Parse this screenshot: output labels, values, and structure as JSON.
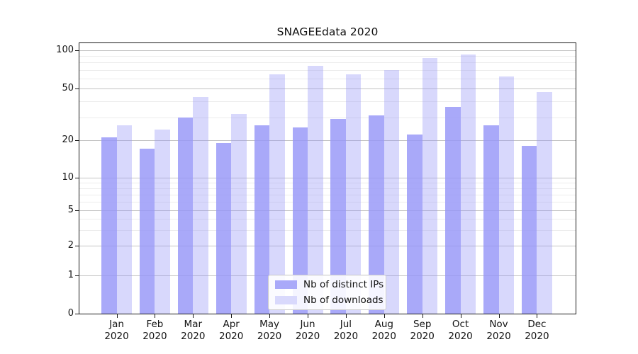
{
  "chart_data": {
    "type": "bar",
    "title": "SNAGEEdata 2020",
    "x_year": "2020",
    "categories": [
      "Jan",
      "Feb",
      "Mar",
      "Apr",
      "May",
      "Jun",
      "Jul",
      "Aug",
      "Sep",
      "Oct",
      "Nov",
      "Dec"
    ],
    "series": [
      {
        "name": "Nb of distinct IPs",
        "values": [
          21,
          17,
          30,
          19,
          26,
          25,
          29,
          31,
          22,
          36,
          26,
          18
        ],
        "color": "#9696f8",
        "opacity": 0.82,
        "legend_swatch_color": "#a9a9f9"
      },
      {
        "name": "Nb of downloads",
        "values": [
          26,
          24,
          43,
          32,
          65,
          75,
          65,
          70,
          87,
          92,
          62,
          47
        ],
        "color": "#9696f8",
        "opacity": 0.37,
        "legend_swatch_color": "#d9d9fc"
      }
    ],
    "y_scale": "quasi-log (log above 1, linear 0-1)",
    "y_ticks_major": [
      0,
      1,
      2,
      5,
      10,
      20,
      50,
      100
    ],
    "y_ticks_minor": [
      3,
      4,
      6,
      7,
      8,
      9,
      30,
      40,
      60,
      70,
      80,
      90
    ],
    "ylim": [
      0,
      115
    ],
    "grid": true,
    "legend_position": "lower-center"
  },
  "colors": {
    "grid_major": "#c3c3c3",
    "grid_minor": "#ececec",
    "spine": "#1a1a1a",
    "text": "#141414"
  }
}
